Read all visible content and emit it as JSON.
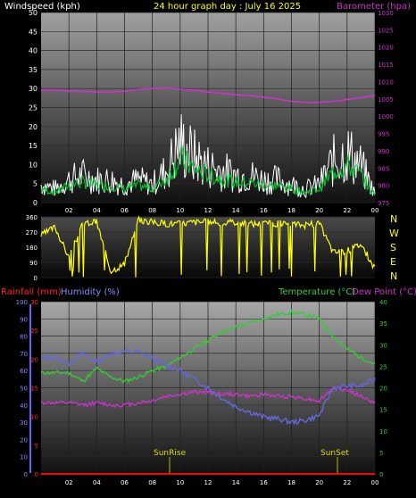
{
  "header": {
    "left": "Windspeed (kph)",
    "center": "24 hour graph day : July 16 2025",
    "right": "Barometer (hpa)"
  },
  "direction_labels": [
    "N",
    "W",
    "S",
    "E",
    "N"
  ],
  "bottom_header": {
    "rainfall": "Rainfall (mm)",
    "humidity": "Humidity (%)",
    "temperature": "Temperature (°C)",
    "dewpoint": "Dew Point (°C)"
  },
  "events": {
    "sunrise": "SunRise",
    "sunset": "SunSet"
  },
  "colors": {
    "wind_gust": "#ffffff",
    "wind_avg": "#00cc33",
    "barometer": "#cc33cc",
    "direction": "#ffff00",
    "temperature": "#33cc33",
    "dewpoint": "#cc33cc",
    "humidity": "#6666dd",
    "rainfall": "#ff0000",
    "sun_marker": "#bbbb00"
  },
  "chart_data": [
    {
      "type": "line",
      "title": "24 hour graph day : July 16 2025",
      "x_ticks": [
        "02",
        "04",
        "06",
        "08",
        "10",
        "12",
        "14",
        "16",
        "18",
        "20",
        "22",
        "00"
      ],
      "y_left_label": "Windspeed (kph)",
      "y_left_ticks": [
        0,
        5,
        10,
        15,
        20,
        25,
        30,
        35,
        40,
        45,
        50
      ],
      "ylim": [
        0,
        50
      ],
      "y_right_label": "Barometer (hpa)",
      "y_right_ticks": [
        975,
        980,
        985,
        990,
        995,
        1000,
        1005,
        1010,
        1015,
        1020,
        1025,
        1030
      ],
      "y_right_lim": [
        975,
        1030
      ],
      "series": [
        {
          "name": "Windspeed (kph)",
          "axis": "left",
          "x": [
            0,
            1,
            2,
            3,
            4,
            5,
            6,
            7,
            8,
            9,
            10,
            11,
            12,
            13,
            14,
            15,
            16,
            17,
            18,
            19,
            20,
            21,
            22,
            23,
            24
          ],
          "values": [
            4,
            3,
            5,
            6,
            5,
            5,
            4,
            5,
            4,
            7,
            13,
            10,
            8,
            7,
            6,
            6,
            5,
            5,
            4,
            3,
            4,
            9,
            11,
            8,
            2
          ]
        },
        {
          "name": "Barometer (hpa)",
          "axis": "right",
          "x": [
            0,
            1,
            2,
            3,
            4,
            5,
            6,
            7,
            8,
            9,
            10,
            11,
            12,
            13,
            14,
            15,
            16,
            17,
            18,
            19,
            20,
            21,
            22,
            23,
            24
          ],
          "values": [
            1007.5,
            1007.5,
            1007.3,
            1007.2,
            1007,
            1007,
            1007.2,
            1007.8,
            1008,
            1008.2,
            1007.8,
            1007.5,
            1007,
            1006.6,
            1006.2,
            1006,
            1005.5,
            1005,
            1004.3,
            1004,
            1004,
            1004.3,
            1004.8,
            1005.3,
            1006
          ]
        }
      ]
    },
    {
      "type": "line",
      "title": "",
      "x_ticks": [],
      "y_left_ticks": [
        0,
        90,
        180,
        270,
        360
      ],
      "ylim": [
        0,
        360
      ],
      "series": [
        {
          "name": "Wind direction",
          "x": [
            0,
            1,
            2,
            3,
            4,
            5,
            6,
            7,
            8,
            9,
            10,
            11,
            12,
            13,
            14,
            15,
            16,
            17,
            18,
            19,
            20,
            21,
            22,
            23,
            24
          ],
          "values": [
            250,
            300,
            120,
            320,
            330,
            40,
            80,
            340,
            330,
            320,
            320,
            330,
            330,
            320,
            330,
            320,
            320,
            320,
            320,
            310,
            320,
            150,
            160,
            200,
            50
          ]
        }
      ]
    },
    {
      "type": "line",
      "title": "",
      "x_ticks": [
        "02",
        "04",
        "06",
        "08",
        "10",
        "12",
        "14",
        "16",
        "18",
        "20",
        "22",
        "00"
      ],
      "y_left_label": "Rainfall (mm) / Humidity (%)",
      "y_left_ticks": [
        0,
        10,
        20,
        30,
        40,
        50,
        60,
        70,
        80,
        90,
        100
      ],
      "ylim": [
        0,
        100
      ],
      "rain_ticks": [
        0,
        5,
        10,
        15,
        20,
        25,
        30
      ],
      "rain_lim": [
        0,
        30
      ],
      "y_right_label": "Temperature (°C) / Dew Point (°C)",
      "y_right_ticks": [
        0,
        5,
        10,
        15,
        20,
        25,
        30,
        35,
        40
      ],
      "y_right_lim": [
        0,
        40
      ],
      "series": [
        {
          "name": "Temperature (°C)",
          "axis": "right",
          "x": [
            0,
            1,
            2,
            3,
            4,
            5,
            6,
            7,
            8,
            9,
            10,
            11,
            12,
            13,
            14,
            15,
            16,
            17,
            18,
            19,
            20,
            21,
            22,
            23,
            24
          ],
          "values": [
            23.5,
            23.5,
            23.5,
            21.5,
            24.5,
            22.5,
            21.5,
            22.5,
            24,
            25,
            27,
            29,
            31,
            33,
            34,
            35,
            36,
            37,
            37.5,
            37,
            36,
            32,
            29,
            27,
            25.5
          ]
        },
        {
          "name": "Dew Point (°C)",
          "axis": "right",
          "x": [
            0,
            1,
            2,
            3,
            4,
            5,
            6,
            7,
            8,
            9,
            10,
            11,
            12,
            13,
            14,
            15,
            16,
            17,
            18,
            19,
            20,
            21,
            22,
            23,
            24
          ],
          "values": [
            16.5,
            16.5,
            16.5,
            16,
            16.5,
            16,
            16,
            16.5,
            17,
            18,
            18.5,
            19,
            19,
            18.5,
            18.5,
            18,
            18.5,
            18,
            18,
            17.5,
            17,
            20,
            19.5,
            18,
            16.5
          ]
        },
        {
          "name": "Humidity (%)",
          "axis": "left",
          "x": [
            0,
            1,
            2,
            3,
            4,
            5,
            6,
            7,
            8,
            9,
            10,
            11,
            12,
            13,
            14,
            15,
            16,
            17,
            18,
            19,
            20,
            21,
            22,
            23,
            24
          ],
          "values": [
            67,
            68,
            64,
            70,
            65,
            70,
            71,
            71,
            67,
            63,
            60,
            55,
            50,
            44,
            39,
            36,
            33,
            32,
            30,
            31,
            34,
            50,
            51,
            51,
            55
          ]
        },
        {
          "name": "Rainfall (mm)",
          "axis": "rain",
          "x": [
            0,
            24
          ],
          "values": [
            0,
            0
          ]
        }
      ]
    }
  ]
}
